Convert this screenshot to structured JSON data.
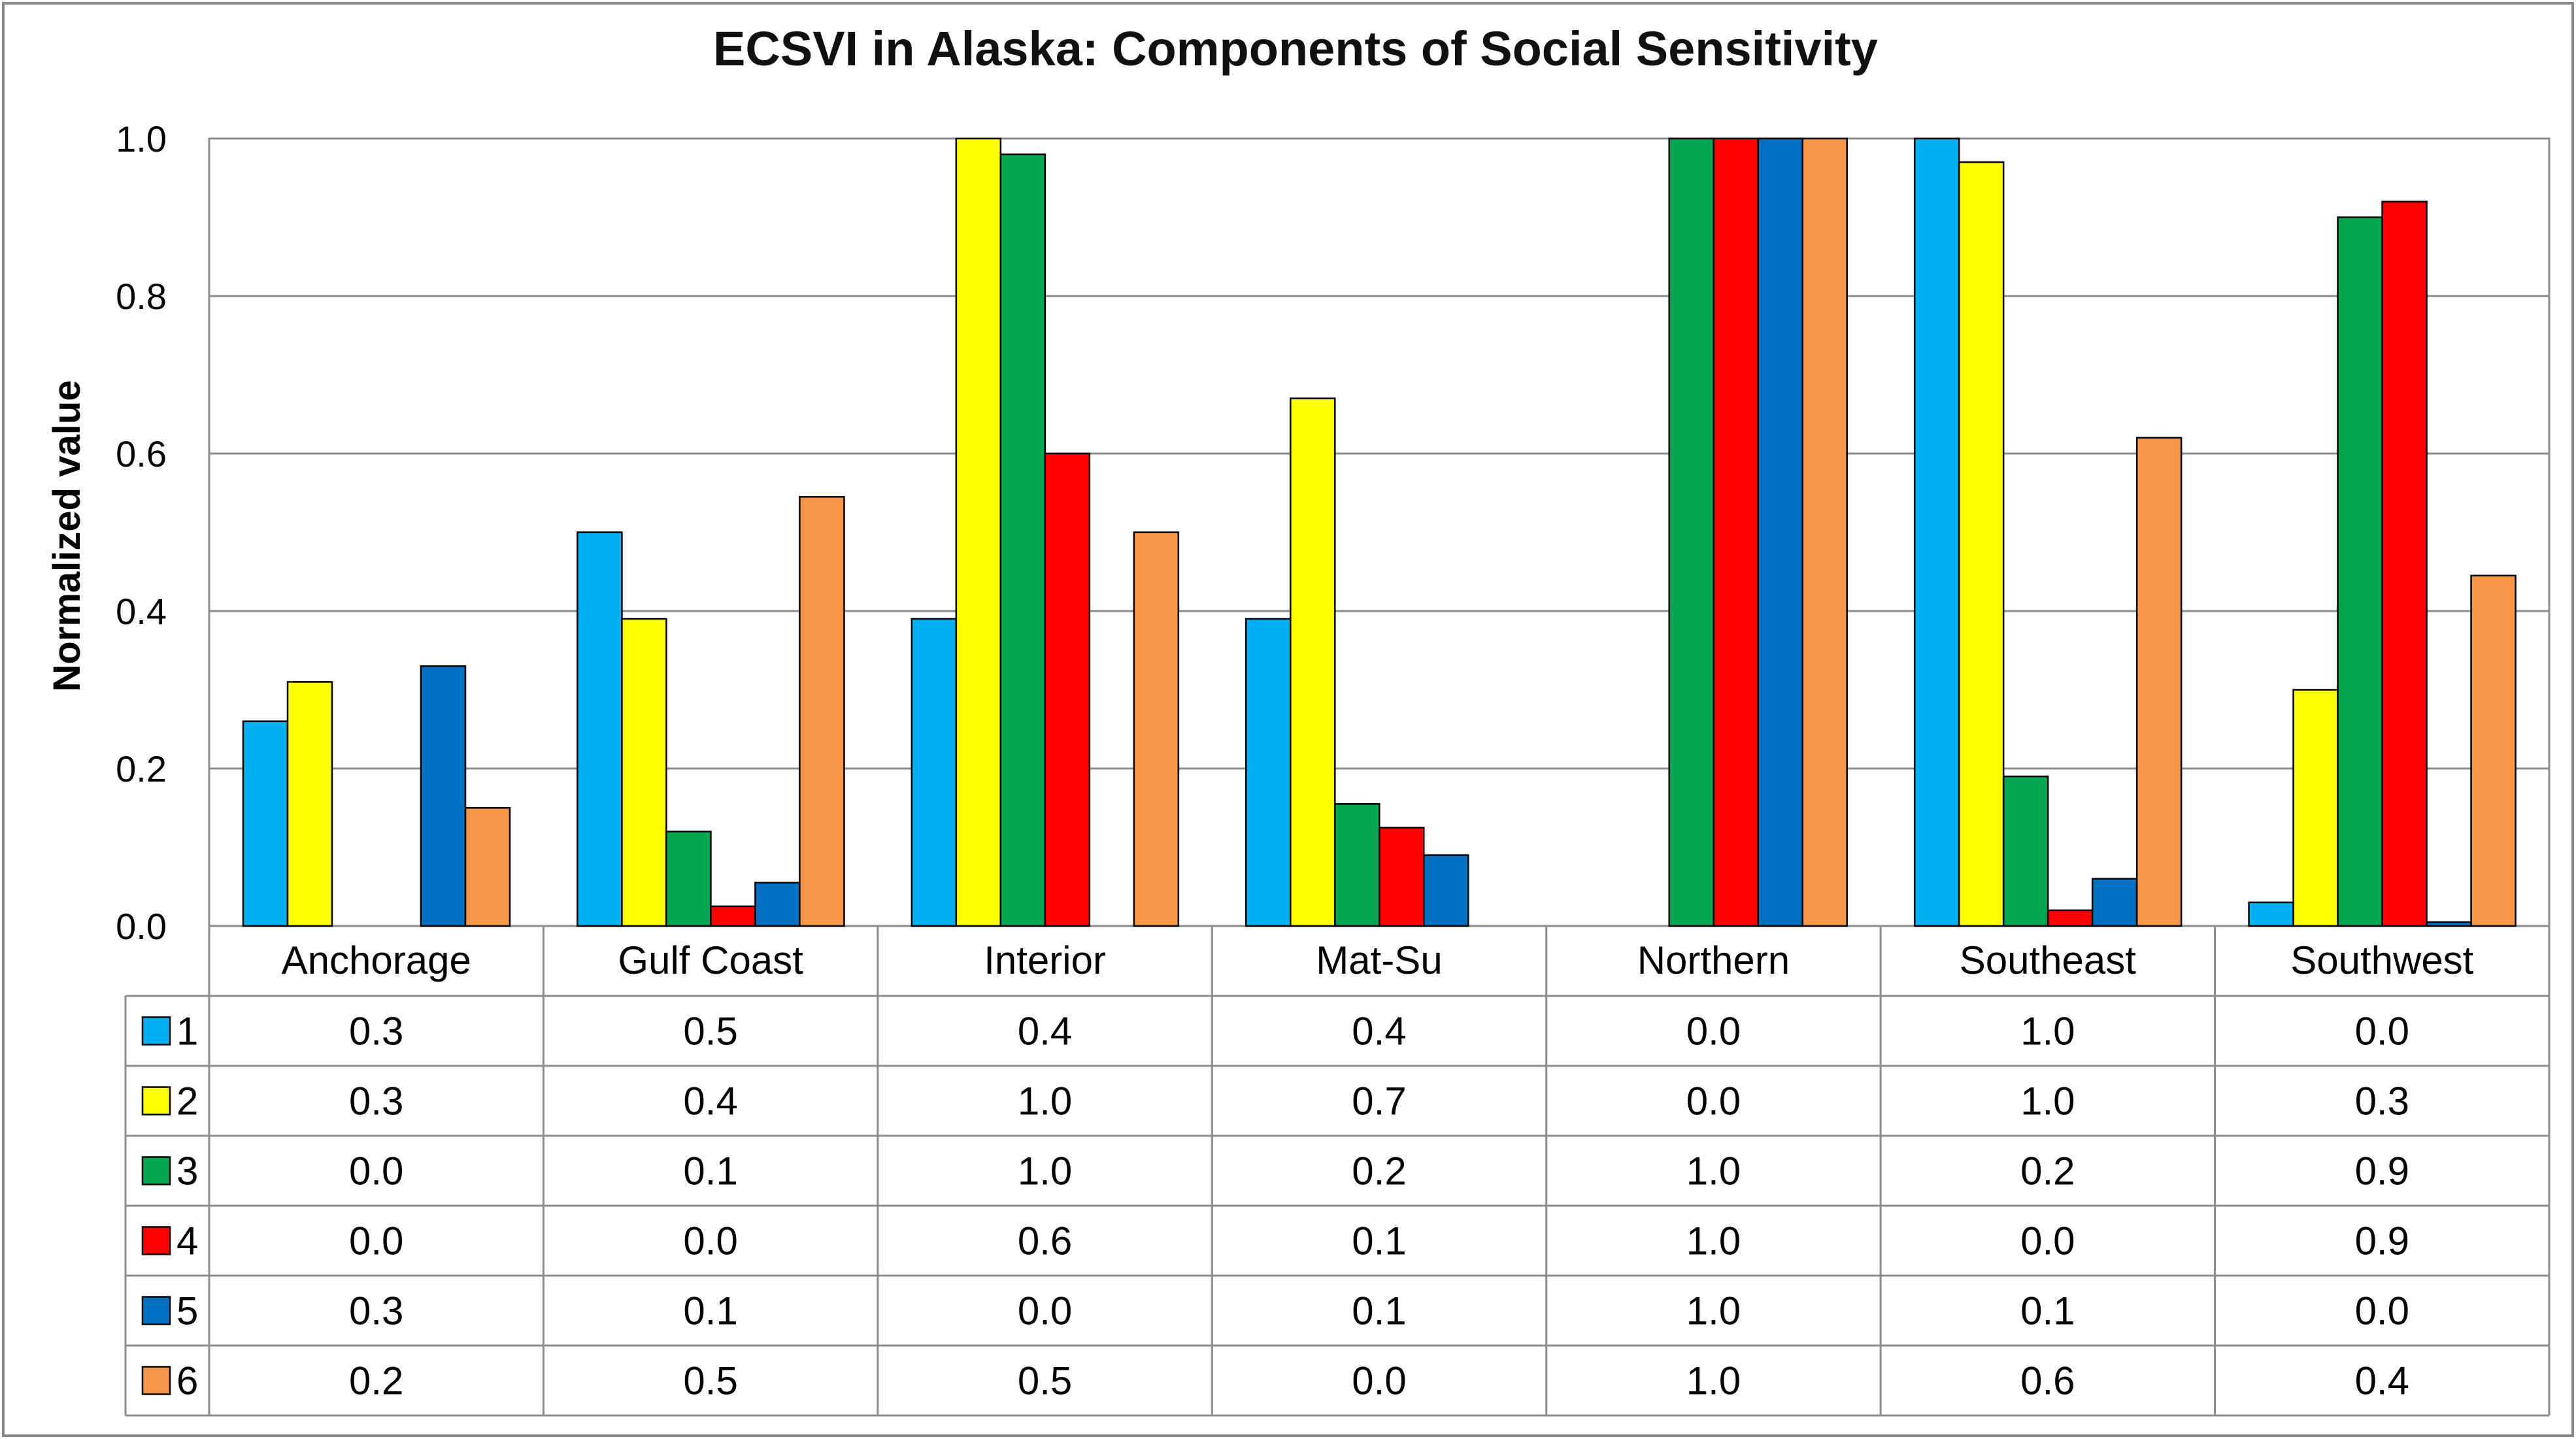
{
  "chart_data": {
    "type": "bar",
    "title": "ECSVI in Alaska: Components of Social Sensitivity",
    "ylabel": "Normalized value",
    "xlabel": "",
    "ylim": [
      0,
      1
    ],
    "yticks": [
      "0.0",
      "0.2",
      "0.4",
      "0.6",
      "0.8",
      "1.0"
    ],
    "categories": [
      "Anchorage",
      "Gulf Coast",
      "Interior",
      "Mat-Su",
      "Northern",
      "Southeast",
      "Southwest"
    ],
    "series": [
      {
        "name": "1",
        "color": "#00b0f0",
        "values": [
          0.26,
          0.5,
          0.39,
          0.39,
          0.0,
          1.0,
          0.03
        ],
        "table": [
          "0.3",
          "0.5",
          "0.4",
          "0.4",
          "0.0",
          "1.0",
          "0.0"
        ]
      },
      {
        "name": "2",
        "color": "#ffff00",
        "values": [
          0.31,
          0.39,
          1.0,
          0.67,
          0.0,
          0.97,
          0.3
        ],
        "table": [
          "0.3",
          "0.4",
          "1.0",
          "0.7",
          "0.0",
          "1.0",
          "0.3"
        ]
      },
      {
        "name": "3",
        "color": "#00a651",
        "values": [
          0.0,
          0.12,
          0.98,
          0.155,
          1.0,
          0.19,
          0.9
        ],
        "table": [
          "0.0",
          "0.1",
          "1.0",
          "0.2",
          "1.0",
          "0.2",
          "0.9"
        ]
      },
      {
        "name": "4",
        "color": "#ff0000",
        "values": [
          0.0,
          0.025,
          0.6,
          0.125,
          1.0,
          0.02,
          0.92
        ],
        "table": [
          "0.0",
          "0.0",
          "0.6",
          "0.1",
          "1.0",
          "0.0",
          "0.9"
        ]
      },
      {
        "name": "5",
        "color": "#0070c0",
        "values": [
          0.33,
          0.055,
          0.0,
          0.09,
          1.0,
          0.06,
          0.005
        ],
        "table": [
          "0.3",
          "0.1",
          "0.0",
          "0.1",
          "1.0",
          "0.1",
          "0.0"
        ]
      },
      {
        "name": "6",
        "color": "#f79646",
        "values": [
          0.15,
          0.545,
          0.5,
          0.0,
          1.0,
          0.62,
          0.445
        ],
        "table": [
          "0.2",
          "0.5",
          "0.5",
          "0.0",
          "1.0",
          "0.6",
          "0.4"
        ]
      }
    ],
    "grid": true,
    "legend": "data-table-below"
  }
}
